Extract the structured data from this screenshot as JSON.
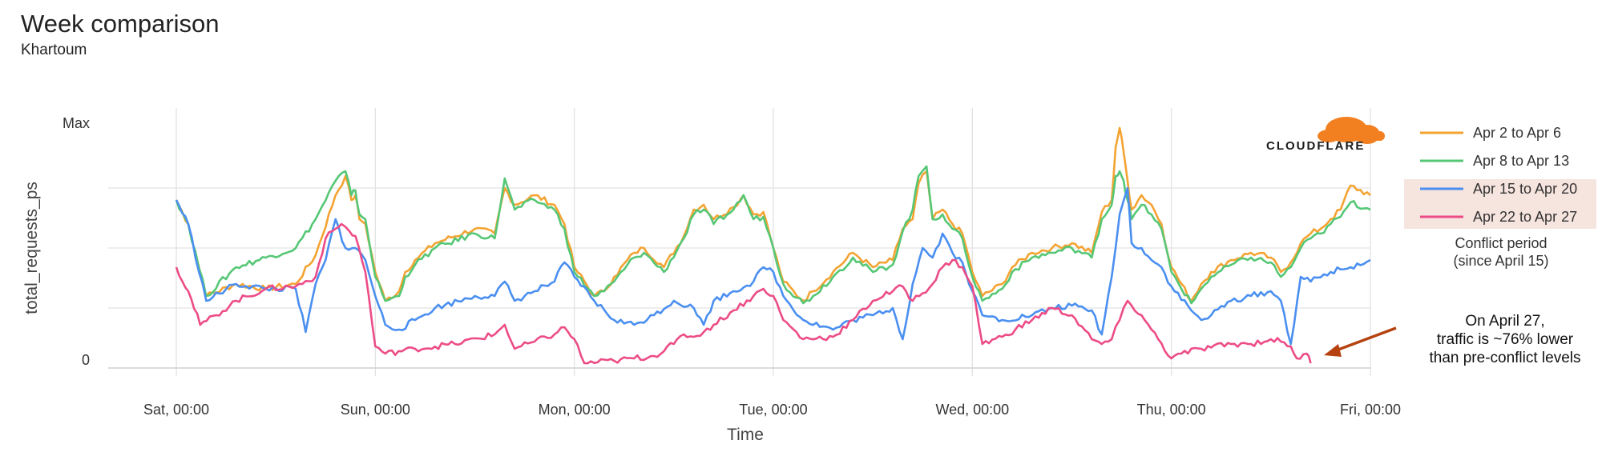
{
  "header": {
    "title": "Week comparison",
    "subtitle": "Khartoum"
  },
  "brand": {
    "logo_text": "CLOUDFLARE",
    "logo_color": "#f38020"
  },
  "legend": {
    "highlight_label": "Conflict period\n(since April 15)",
    "highlight_color": "#f6e4de"
  },
  "annotation": {
    "text": "On April 27,\ntraffic is ~76% lower\nthan pre-conflict levels",
    "arrow_color": "#b5420f"
  },
  "chart_data": {
    "type": "line",
    "title": "Week comparison",
    "subtitle": "Khartoum",
    "xlabel": "Time",
    "ylabel": "total_requests_ps",
    "x_ticks": [
      "Sat, 00:00",
      "Sun, 00:00",
      "Mon, 00:00",
      "Tue, 00:00",
      "Wed, 00:00",
      "Thu, 00:00",
      "Fri, 00:00"
    ],
    "y_ticks": [
      {
        "value": 0,
        "label": "0"
      },
      {
        "value": 1,
        "label": "Max"
      }
    ],
    "xlim": [
      0,
      6
    ],
    "ylim": [
      0,
      1
    ],
    "grid": true,
    "legend_position": "right",
    "x_unit": "days since Sat, 00:00",
    "series": [
      {
        "name": "Apr 2 to Apr 6",
        "color": "#f4a332",
        "x": [
          0,
          0.06,
          0.15,
          0.3,
          0.45,
          0.6,
          0.7,
          0.8,
          0.85,
          0.88,
          0.9,
          0.92,
          0.95,
          1.0,
          1.05,
          1.12,
          1.15,
          1.2,
          1.3,
          1.5,
          1.6,
          1.65,
          1.7,
          1.8,
          1.9,
          1.95,
          2.0,
          2.1,
          2.15,
          2.2,
          2.3,
          2.35,
          2.45,
          2.55,
          2.6,
          2.65,
          2.7,
          2.8,
          2.85,
          2.9,
          2.95,
          3.0,
          3.05,
          3.15,
          3.2,
          3.3,
          3.4,
          3.5,
          3.6,
          3.65,
          3.7,
          3.73,
          3.77,
          3.8,
          3.85,
          3.9,
          3.95,
          4.0,
          4.05,
          4.15,
          4.2,
          4.3,
          4.4,
          4.5,
          4.6,
          4.65,
          4.7,
          4.72,
          4.74,
          4.76,
          4.78,
          4.8,
          4.85,
          4.9,
          4.95,
          5.0,
          5.1,
          5.15,
          5.2,
          5.3,
          5.4,
          5.5,
          5.55,
          5.6,
          5.65,
          5.7,
          5.75,
          5.8,
          5.85,
          5.9,
          6.0
        ],
        "y": [
          0.7,
          0.6,
          0.3,
          0.35,
          0.33,
          0.35,
          0.47,
          0.72,
          0.8,
          0.7,
          0.72,
          0.62,
          0.6,
          0.4,
          0.28,
          0.32,
          0.4,
          0.45,
          0.52,
          0.58,
          0.56,
          0.75,
          0.68,
          0.72,
          0.68,
          0.6,
          0.42,
          0.3,
          0.32,
          0.38,
          0.48,
          0.5,
          0.42,
          0.55,
          0.66,
          0.68,
          0.62,
          0.67,
          0.72,
          0.64,
          0.65,
          0.5,
          0.36,
          0.28,
          0.32,
          0.4,
          0.48,
          0.42,
          0.45,
          0.58,
          0.62,
          0.77,
          0.82,
          0.62,
          0.66,
          0.6,
          0.56,
          0.4,
          0.3,
          0.35,
          0.42,
          0.48,
          0.5,
          0.52,
          0.48,
          0.65,
          0.7,
          0.92,
          1.0,
          0.9,
          0.78,
          0.66,
          0.72,
          0.68,
          0.6,
          0.42,
          0.28,
          0.35,
          0.4,
          0.45,
          0.48,
          0.46,
          0.4,
          0.44,
          0.52,
          0.56,
          0.58,
          0.62,
          0.66,
          0.76,
          0.72
        ]
      },
      {
        "name": "Apr 8 to Apr 13",
        "color": "#56c776",
        "x": [
          0,
          0.06,
          0.15,
          0.3,
          0.45,
          0.6,
          0.7,
          0.8,
          0.85,
          0.88,
          0.9,
          0.92,
          0.95,
          1.0,
          1.05,
          1.12,
          1.15,
          1.2,
          1.3,
          1.5,
          1.6,
          1.65,
          1.7,
          1.8,
          1.9,
          1.95,
          2.0,
          2.1,
          2.15,
          2.2,
          2.3,
          2.35,
          2.45,
          2.55,
          2.6,
          2.65,
          2.7,
          2.8,
          2.85,
          2.9,
          2.95,
          3.0,
          3.05,
          3.15,
          3.2,
          3.3,
          3.4,
          3.5,
          3.6,
          3.65,
          3.7,
          3.73,
          3.77,
          3.8,
          3.85,
          3.9,
          3.95,
          4.0,
          4.05,
          4.15,
          4.2,
          4.3,
          4.4,
          4.5,
          4.6,
          4.65,
          4.7,
          4.72,
          4.74,
          4.76,
          4.78,
          4.8,
          4.85,
          4.9,
          4.95,
          5.0,
          5.1,
          5.15,
          5.2,
          5.3,
          5.4,
          5.5,
          5.55,
          5.6,
          5.65,
          5.7,
          5.75,
          5.8,
          5.85,
          5.9,
          6.0
        ],
        "y": [
          0.7,
          0.6,
          0.3,
          0.42,
          0.46,
          0.5,
          0.62,
          0.78,
          0.82,
          0.72,
          0.74,
          0.64,
          0.62,
          0.38,
          0.28,
          0.3,
          0.38,
          0.43,
          0.5,
          0.56,
          0.54,
          0.79,
          0.66,
          0.7,
          0.66,
          0.58,
          0.4,
          0.3,
          0.32,
          0.36,
          0.46,
          0.48,
          0.4,
          0.54,
          0.64,
          0.66,
          0.6,
          0.66,
          0.72,
          0.62,
          0.63,
          0.5,
          0.35,
          0.27,
          0.3,
          0.38,
          0.46,
          0.4,
          0.43,
          0.57,
          0.66,
          0.8,
          0.84,
          0.62,
          0.64,
          0.58,
          0.54,
          0.38,
          0.28,
          0.33,
          0.4,
          0.46,
          0.48,
          0.5,
          0.46,
          0.62,
          0.68,
          0.8,
          0.82,
          0.78,
          0.7,
          0.62,
          0.68,
          0.64,
          0.58,
          0.4,
          0.27,
          0.33,
          0.38,
          0.43,
          0.46,
          0.44,
          0.38,
          0.42,
          0.5,
          0.54,
          0.56,
          0.6,
          0.63,
          0.69,
          0.66
        ]
      },
      {
        "name": "Apr 15 to Apr 20",
        "color": "#4a8ff0",
        "x": [
          0,
          0.06,
          0.15,
          0.3,
          0.45,
          0.6,
          0.65,
          0.7,
          0.75,
          0.8,
          0.85,
          0.9,
          0.95,
          1.0,
          1.05,
          1.12,
          1.2,
          1.3,
          1.5,
          1.6,
          1.65,
          1.7,
          1.8,
          1.9,
          1.95,
          2.0,
          2.1,
          2.2,
          2.3,
          2.4,
          2.5,
          2.6,
          2.65,
          2.7,
          2.8,
          2.9,
          2.95,
          3.0,
          3.05,
          3.15,
          3.3,
          3.4,
          3.5,
          3.6,
          3.65,
          3.7,
          3.75,
          3.8,
          3.85,
          3.9,
          3.95,
          4.0,
          4.05,
          4.15,
          4.3,
          4.4,
          4.5,
          4.6,
          4.65,
          4.7,
          4.74,
          4.78,
          4.8,
          4.85,
          4.9,
          4.95,
          5.0,
          5.1,
          5.15,
          5.2,
          5.3,
          5.4,
          5.5,
          5.55,
          5.6,
          5.65,
          5.7,
          5.8,
          5.9,
          6.0
        ],
        "y": [
          0.7,
          0.6,
          0.28,
          0.35,
          0.33,
          0.33,
          0.15,
          0.35,
          0.45,
          0.62,
          0.5,
          0.5,
          0.45,
          0.3,
          0.18,
          0.16,
          0.2,
          0.25,
          0.3,
          0.3,
          0.36,
          0.28,
          0.32,
          0.36,
          0.44,
          0.38,
          0.28,
          0.2,
          0.18,
          0.22,
          0.28,
          0.25,
          0.18,
          0.28,
          0.32,
          0.36,
          0.42,
          0.4,
          0.3,
          0.2,
          0.16,
          0.2,
          0.22,
          0.25,
          0.12,
          0.35,
          0.5,
          0.46,
          0.56,
          0.48,
          0.44,
          0.32,
          0.22,
          0.2,
          0.22,
          0.25,
          0.26,
          0.24,
          0.14,
          0.38,
          0.64,
          0.75,
          0.52,
          0.5,
          0.45,
          0.42,
          0.34,
          0.24,
          0.2,
          0.22,
          0.28,
          0.3,
          0.32,
          0.28,
          0.1,
          0.38,
          0.36,
          0.4,
          0.42,
          0.45
        ]
      },
      {
        "name": "Apr 22 to Apr 27",
        "color": "#ec4c86",
        "x": [
          0,
          0.06,
          0.12,
          0.2,
          0.3,
          0.45,
          0.6,
          0.7,
          0.75,
          0.8,
          0.83,
          0.87,
          0.9,
          0.95,
          1.0,
          1.05,
          1.2,
          1.4,
          1.6,
          1.65,
          1.7,
          1.8,
          1.9,
          1.95,
          2.0,
          2.05,
          2.2,
          2.4,
          2.5,
          2.55,
          2.6,
          2.65,
          2.7,
          2.8,
          2.9,
          2.95,
          3.0,
          3.05,
          3.15,
          3.3,
          3.4,
          3.5,
          3.6,
          3.65,
          3.7,
          3.8,
          3.85,
          3.9,
          3.95,
          4.0,
          4.05,
          4.15,
          4.3,
          4.4,
          4.5,
          4.6,
          4.65,
          4.7,
          4.74,
          4.78,
          4.8,
          4.85,
          4.9,
          5.0,
          5.05,
          5.15,
          5.3,
          5.4,
          5.5,
          5.55,
          5.6,
          5.63,
          5.68,
          5.7
        ],
        "y": [
          0.42,
          0.32,
          0.18,
          0.22,
          0.28,
          0.33,
          0.34,
          0.38,
          0.54,
          0.58,
          0.6,
          0.57,
          0.55,
          0.4,
          0.09,
          0.06,
          0.08,
          0.1,
          0.14,
          0.18,
          0.08,
          0.11,
          0.14,
          0.17,
          0.12,
          0.02,
          0.03,
          0.05,
          0.1,
          0.14,
          0.13,
          0.15,
          0.18,
          0.24,
          0.3,
          0.33,
          0.3,
          0.2,
          0.12,
          0.13,
          0.2,
          0.28,
          0.32,
          0.34,
          0.28,
          0.35,
          0.42,
          0.45,
          0.42,
          0.34,
          0.1,
          0.13,
          0.2,
          0.25,
          0.22,
          0.12,
          0.1,
          0.12,
          0.2,
          0.28,
          0.26,
          0.22,
          0.16,
          0.04,
          0.06,
          0.08,
          0.1,
          0.1,
          0.12,
          0.11,
          0.09,
          0.04,
          0.06,
          0.02
        ]
      }
    ]
  }
}
